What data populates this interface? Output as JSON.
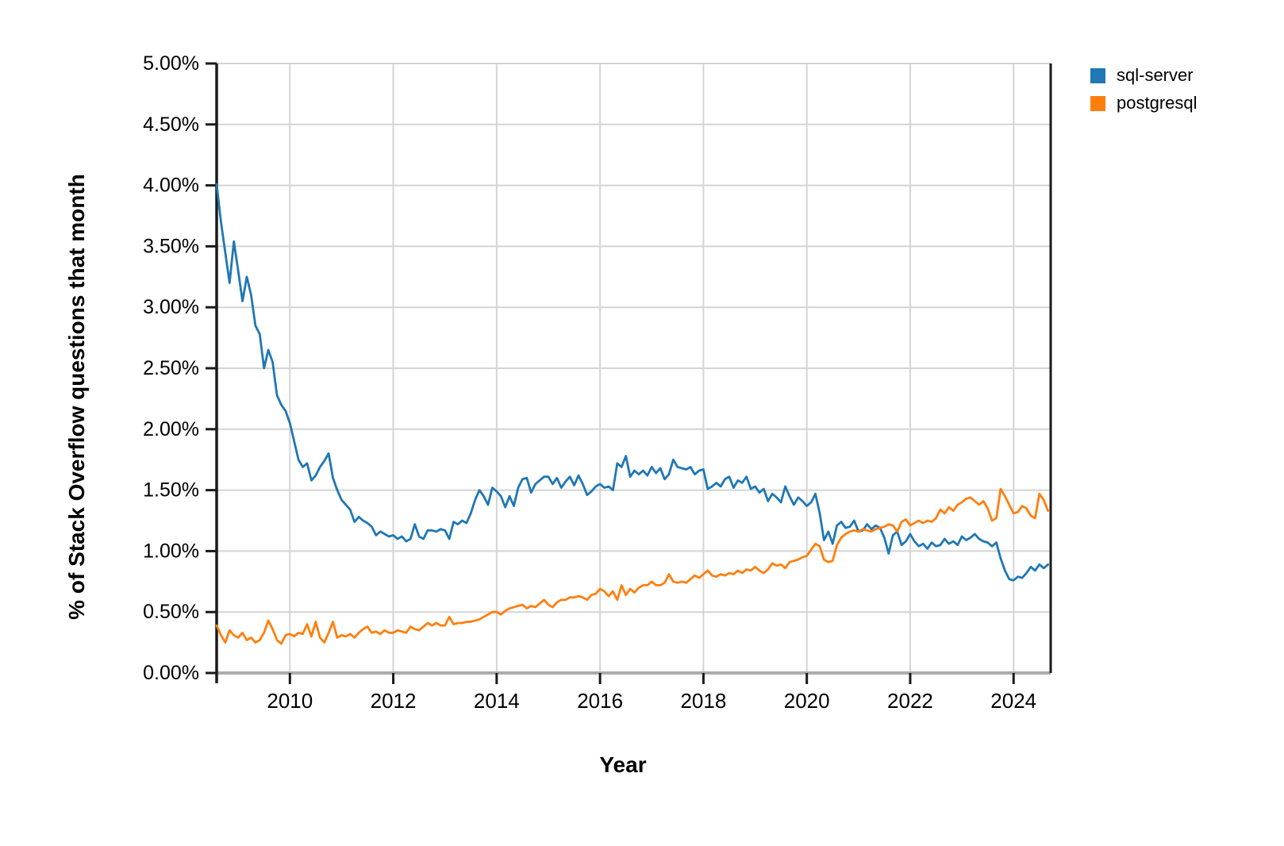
{
  "chart_data": {
    "type": "line",
    "title": "",
    "xlabel": "Year",
    "ylabel": "% of Stack Overflow questions that month",
    "grid": true,
    "legend_position": "top-right-outside",
    "background_color": "#ffffff",
    "gridline_color": "#d4d4d4",
    "axis_color": "#1a1a1a",
    "bottom_axis_band_color": "#ababab",
    "xlim": [
      2008.583,
      2024.718
    ],
    "ylim": [
      0,
      5
    ],
    "x_ticks": [
      2010,
      2012,
      2014,
      2016,
      2018,
      2020,
      2022,
      2024
    ],
    "x_tick_labels": [
      "2010",
      "2012",
      "2014",
      "2016",
      "2018",
      "2020",
      "2022",
      "2024"
    ],
    "y_tick_values": [
      0,
      0.5,
      1.0,
      1.5,
      2.0,
      2.5,
      3.0,
      3.5,
      4.0,
      4.5,
      5.0
    ],
    "y_tick_labels": [
      "0.00%",
      "0.50%",
      "1.00%",
      "1.50%",
      "2.00%",
      "2.50%",
      "3.00%",
      "3.50%",
      "4.00%",
      "4.50%",
      "5.00%"
    ],
    "x_start_year": 2008.583,
    "x_step_years": 0.0833333,
    "x_unit": "month",
    "series": [
      {
        "name": "sql-server",
        "color": "#1f77b4",
        "values": [
          4.01,
          3.7,
          3.45,
          3.2,
          3.54,
          3.3,
          3.05,
          3.25,
          3.1,
          2.85,
          2.78,
          2.5,
          2.65,
          2.55,
          2.28,
          2.2,
          2.15,
          2.05,
          1.9,
          1.75,
          1.69,
          1.72,
          1.58,
          1.62,
          1.69,
          1.74,
          1.8,
          1.6,
          1.5,
          1.42,
          1.38,
          1.34,
          1.24,
          1.28,
          1.25,
          1.23,
          1.2,
          1.13,
          1.16,
          1.14,
          1.12,
          1.13,
          1.1,
          1.12,
          1.08,
          1.1,
          1.22,
          1.12,
          1.1,
          1.17,
          1.17,
          1.16,
          1.18,
          1.17,
          1.1,
          1.24,
          1.22,
          1.25,
          1.23,
          1.31,
          1.42,
          1.5,
          1.45,
          1.38,
          1.52,
          1.49,
          1.45,
          1.36,
          1.45,
          1.37,
          1.52,
          1.59,
          1.6,
          1.48,
          1.55,
          1.58,
          1.61,
          1.61,
          1.55,
          1.6,
          1.52,
          1.57,
          1.61,
          1.54,
          1.62,
          1.55,
          1.46,
          1.49,
          1.53,
          1.55,
          1.52,
          1.53,
          1.5,
          1.72,
          1.69,
          1.78,
          1.61,
          1.66,
          1.63,
          1.66,
          1.62,
          1.69,
          1.64,
          1.68,
          1.59,
          1.63,
          1.75,
          1.69,
          1.68,
          1.67,
          1.69,
          1.63,
          1.66,
          1.67,
          1.51,
          1.53,
          1.56,
          1.53,
          1.59,
          1.61,
          1.52,
          1.58,
          1.56,
          1.61,
          1.51,
          1.53,
          1.48,
          1.51,
          1.41,
          1.47,
          1.44,
          1.4,
          1.53,
          1.45,
          1.38,
          1.44,
          1.41,
          1.37,
          1.4,
          1.47,
          1.31,
          1.09,
          1.16,
          1.06,
          1.21,
          1.24,
          1.19,
          1.2,
          1.25,
          1.16,
          1.17,
          1.22,
          1.18,
          1.21,
          1.19,
          1.11,
          0.98,
          1.13,
          1.16,
          1.05,
          1.08,
          1.14,
          1.08,
          1.04,
          1.06,
          1.02,
          1.07,
          1.04,
          1.05,
          1.1,
          1.06,
          1.08,
          1.05,
          1.12,
          1.09,
          1.11,
          1.14,
          1.1,
          1.08,
          1.07,
          1.04,
          1.07,
          0.94,
          0.84,
          0.77,
          0.76,
          0.79,
          0.78,
          0.82,
          0.87,
          0.84,
          0.89,
          0.86,
          0.89
        ]
      },
      {
        "name": "postgresql",
        "color": "#ff7f0e",
        "values": [
          0.39,
          0.31,
          0.25,
          0.35,
          0.31,
          0.29,
          0.33,
          0.27,
          0.29,
          0.25,
          0.27,
          0.33,
          0.43,
          0.36,
          0.27,
          0.24,
          0.31,
          0.32,
          0.3,
          0.33,
          0.32,
          0.4,
          0.3,
          0.42,
          0.29,
          0.25,
          0.33,
          0.42,
          0.29,
          0.31,
          0.3,
          0.32,
          0.29,
          0.33,
          0.36,
          0.38,
          0.33,
          0.34,
          0.32,
          0.35,
          0.33,
          0.33,
          0.35,
          0.34,
          0.33,
          0.38,
          0.36,
          0.35,
          0.38,
          0.41,
          0.39,
          0.41,
          0.39,
          0.39,
          0.46,
          0.4,
          0.41,
          0.41,
          0.42,
          0.42,
          0.43,
          0.44,
          0.46,
          0.48,
          0.5,
          0.5,
          0.48,
          0.51,
          0.53,
          0.54,
          0.55,
          0.56,
          0.53,
          0.55,
          0.54,
          0.57,
          0.6,
          0.56,
          0.54,
          0.58,
          0.6,
          0.6,
          0.62,
          0.62,
          0.63,
          0.62,
          0.6,
          0.64,
          0.65,
          0.69,
          0.67,
          0.63,
          0.67,
          0.6,
          0.72,
          0.64,
          0.69,
          0.66,
          0.7,
          0.72,
          0.72,
          0.75,
          0.72,
          0.72,
          0.74,
          0.81,
          0.75,
          0.74,
          0.75,
          0.74,
          0.77,
          0.8,
          0.78,
          0.81,
          0.84,
          0.8,
          0.79,
          0.81,
          0.8,
          0.82,
          0.81,
          0.84,
          0.82,
          0.85,
          0.84,
          0.87,
          0.84,
          0.82,
          0.85,
          0.9,
          0.88,
          0.89,
          0.86,
          0.91,
          0.92,
          0.93,
          0.95,
          0.96,
          1.01,
          1.06,
          1.04,
          0.93,
          0.91,
          0.92,
          1.05,
          1.11,
          1.14,
          1.16,
          1.17,
          1.16,
          1.18,
          1.17,
          1.16,
          1.18,
          1.19,
          1.2,
          1.22,
          1.21,
          1.16,
          1.24,
          1.26,
          1.21,
          1.23,
          1.25,
          1.23,
          1.25,
          1.24,
          1.27,
          1.34,
          1.31,
          1.36,
          1.33,
          1.38,
          1.4,
          1.43,
          1.44,
          1.41,
          1.38,
          1.41,
          1.35,
          1.25,
          1.27,
          1.51,
          1.45,
          1.38,
          1.31,
          1.32,
          1.37,
          1.35,
          1.29,
          1.27,
          1.47,
          1.42,
          1.33
        ]
      }
    ]
  }
}
